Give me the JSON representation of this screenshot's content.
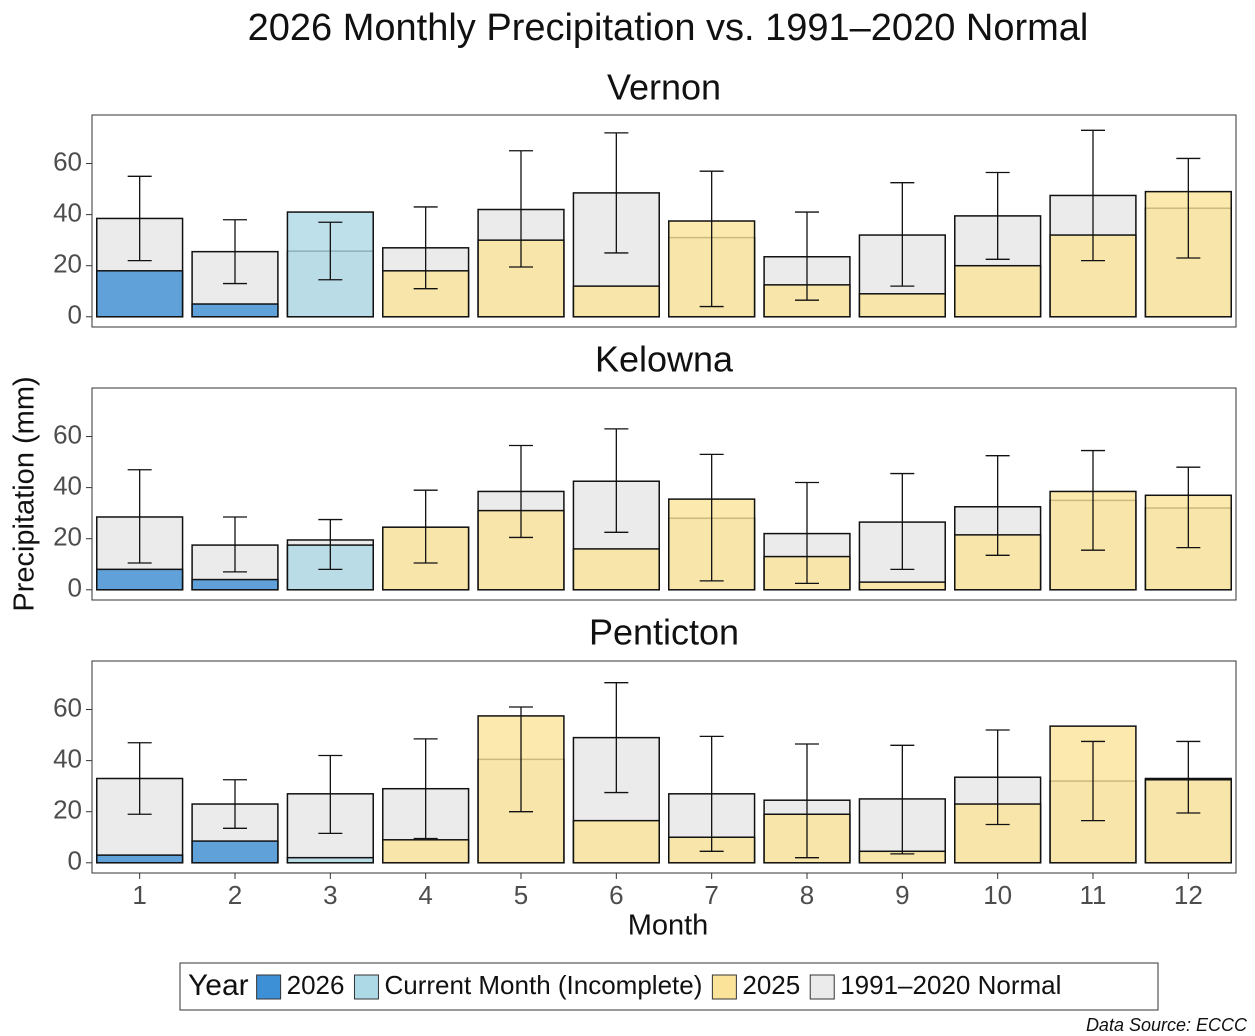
{
  "title": "2026  Monthly Precipitation vs. 1991–2020 Normal",
  "y_label": "Precipitation (mm)",
  "x_label": "Month",
  "source": "Data Source: ECCC",
  "categories": [
    1,
    2,
    3,
    4,
    5,
    6,
    7,
    8,
    9,
    10,
    11,
    12
  ],
  "legend": {
    "title": "Year",
    "items": [
      {
        "name": "2026",
        "color": "#3d8fd6"
      },
      {
        "name": "Current Month (Incomplete)",
        "color": "#add8e6"
      },
      {
        "name": "2025",
        "color": "#fbe49a"
      },
      {
        "name": "1991–2020 Normal",
        "color": "#ebebeb"
      }
    ]
  },
  "chart_data": [
    {
      "type": "bar",
      "title": "Vernon",
      "ylim": [
        -4,
        79
      ],
      "yticks": [
        0,
        20,
        40,
        60
      ],
      "series": [
        {
          "values": [
            18,
            5,
            null,
            null,
            null,
            null,
            null,
            null,
            null,
            null,
            null,
            null
          ]
        },
        {
          "values": [
            null,
            null,
            41,
            null,
            null,
            null,
            null,
            null,
            null,
            null,
            null,
            null
          ]
        },
        {
          "values": [
            null,
            null,
            null,
            18,
            30,
            12,
            37.5,
            12.5,
            9,
            20,
            32,
            49
          ]
        },
        {
          "values": [
            38.5,
            25.5,
            25.7,
            27,
            42,
            48.5,
            31,
            23.5,
            32,
            39.5,
            47.5,
            42.5
          ]
        }
      ],
      "error_range": [
        [
          22,
          55
        ],
        [
          13,
          38
        ],
        [
          14.5,
          37
        ],
        [
          11,
          43
        ],
        [
          19.5,
          65
        ],
        [
          25,
          72
        ],
        [
          4,
          57
        ],
        [
          6.5,
          41
        ],
        [
          12,
          52.5
        ],
        [
          22.5,
          56.5
        ],
        [
          22,
          73
        ],
        [
          23,
          62
        ]
      ]
    },
    {
      "type": "bar",
      "title": "Kelowna",
      "ylim": [
        -4,
        79
      ],
      "yticks": [
        0,
        20,
        40,
        60
      ],
      "series": [
        {
          "values": [
            8,
            4,
            null,
            null,
            null,
            null,
            null,
            null,
            null,
            null,
            null,
            null
          ]
        },
        {
          "values": [
            null,
            null,
            17.5,
            null,
            null,
            null,
            null,
            null,
            null,
            null,
            null,
            null
          ]
        },
        {
          "values": [
            null,
            null,
            null,
            24.5,
            31,
            16,
            35.5,
            13,
            3,
            21.5,
            38.5,
            37
          ]
        },
        {
          "values": [
            28.5,
            17.5,
            19.5,
            24.5,
            38.5,
            42.5,
            28,
            22,
            26.5,
            32.5,
            35,
            32
          ]
        }
      ],
      "error_range": [
        [
          10.5,
          47
        ],
        [
          7,
          28.5
        ],
        [
          8,
          27.5
        ],
        [
          10.5,
          39
        ],
        [
          20.5,
          56.5
        ],
        [
          22.5,
          63
        ],
        [
          3.5,
          53
        ],
        [
          2.5,
          42
        ],
        [
          8,
          45.5
        ],
        [
          13.5,
          52.5
        ],
        [
          15.5,
          54.5
        ],
        [
          16.5,
          48
        ]
      ]
    },
    {
      "type": "bar",
      "title": "Penticton",
      "ylim": [
        -4,
        79
      ],
      "yticks": [
        0,
        20,
        40,
        60
      ],
      "series": [
        {
          "values": [
            3,
            8.5,
            null,
            null,
            null,
            null,
            null,
            null,
            null,
            null,
            null,
            null
          ]
        },
        {
          "values": [
            null,
            null,
            2,
            null,
            null,
            null,
            null,
            null,
            null,
            null,
            null,
            null
          ]
        },
        {
          "values": [
            null,
            null,
            null,
            9,
            57.5,
            16.5,
            10,
            19,
            4.5,
            23,
            53.5,
            32.5
          ]
        },
        {
          "values": [
            33,
            23,
            27,
            29,
            40.5,
            49,
            27,
            24.5,
            25,
            33.5,
            32,
            33
          ]
        }
      ],
      "error_range": [
        [
          19,
          47
        ],
        [
          13.5,
          32.5
        ],
        [
          11.5,
          42
        ],
        [
          9.5,
          48.5
        ],
        [
          20,
          61
        ],
        [
          27.5,
          70.5
        ],
        [
          4.5,
          49.5
        ],
        [
          2,
          46.5
        ],
        [
          3.5,
          46
        ],
        [
          15,
          52
        ],
        [
          16.5,
          47.5
        ],
        [
          19.5,
          47.5
        ]
      ]
    }
  ]
}
